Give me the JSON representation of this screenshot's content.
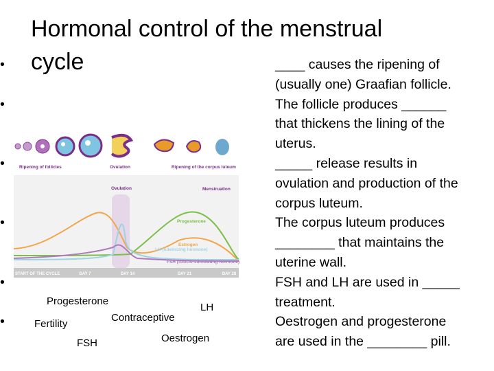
{
  "title": {
    "lines": [
      "Hormonal control of the menstrual",
      "cycle"
    ]
  },
  "bullets": [
    {
      "lines": [
        "____ causes the ripening of",
        "(usually one) Graafian follicle."
      ]
    },
    {
      "lines": [
        "The follicle produces ______",
        "that thickens the lining of the",
        "uterus."
      ]
    },
    {
      "lines": [
        "_____ release results in",
        "ovulation and production of the",
        "corpus luteum."
      ]
    },
    {
      "lines": [
        "The corpus luteum produces",
        "________ that maintains the",
        "uterine wall."
      ]
    },
    {
      "lines": [
        "FSH and LH are used in _____",
        "treatment."
      ]
    },
    {
      "lines": [
        "Oestrogen and progesterone",
        "are used in the ________ pill."
      ]
    }
  ],
  "diagram": {
    "stages": [
      "Ripening of follicles",
      "Ovulation",
      "Ripening of the corpus luteum"
    ],
    "events": [
      "Ovulation",
      "Menstruation"
    ],
    "hormones": [
      "Progesterone",
      "Estrogen",
      "LH (luteinizing hormone)",
      "FSH (follicle-stimulating hormone)"
    ],
    "days": [
      "START OF THE CYCLE",
      "DAY 7",
      "DAY 14",
      "DAY 21",
      "DAY 28"
    ]
  },
  "word_bank": [
    "Progesterone",
    "LH",
    "Contraceptive",
    "Fertility",
    "Oestrogen",
    "FSH"
  ]
}
